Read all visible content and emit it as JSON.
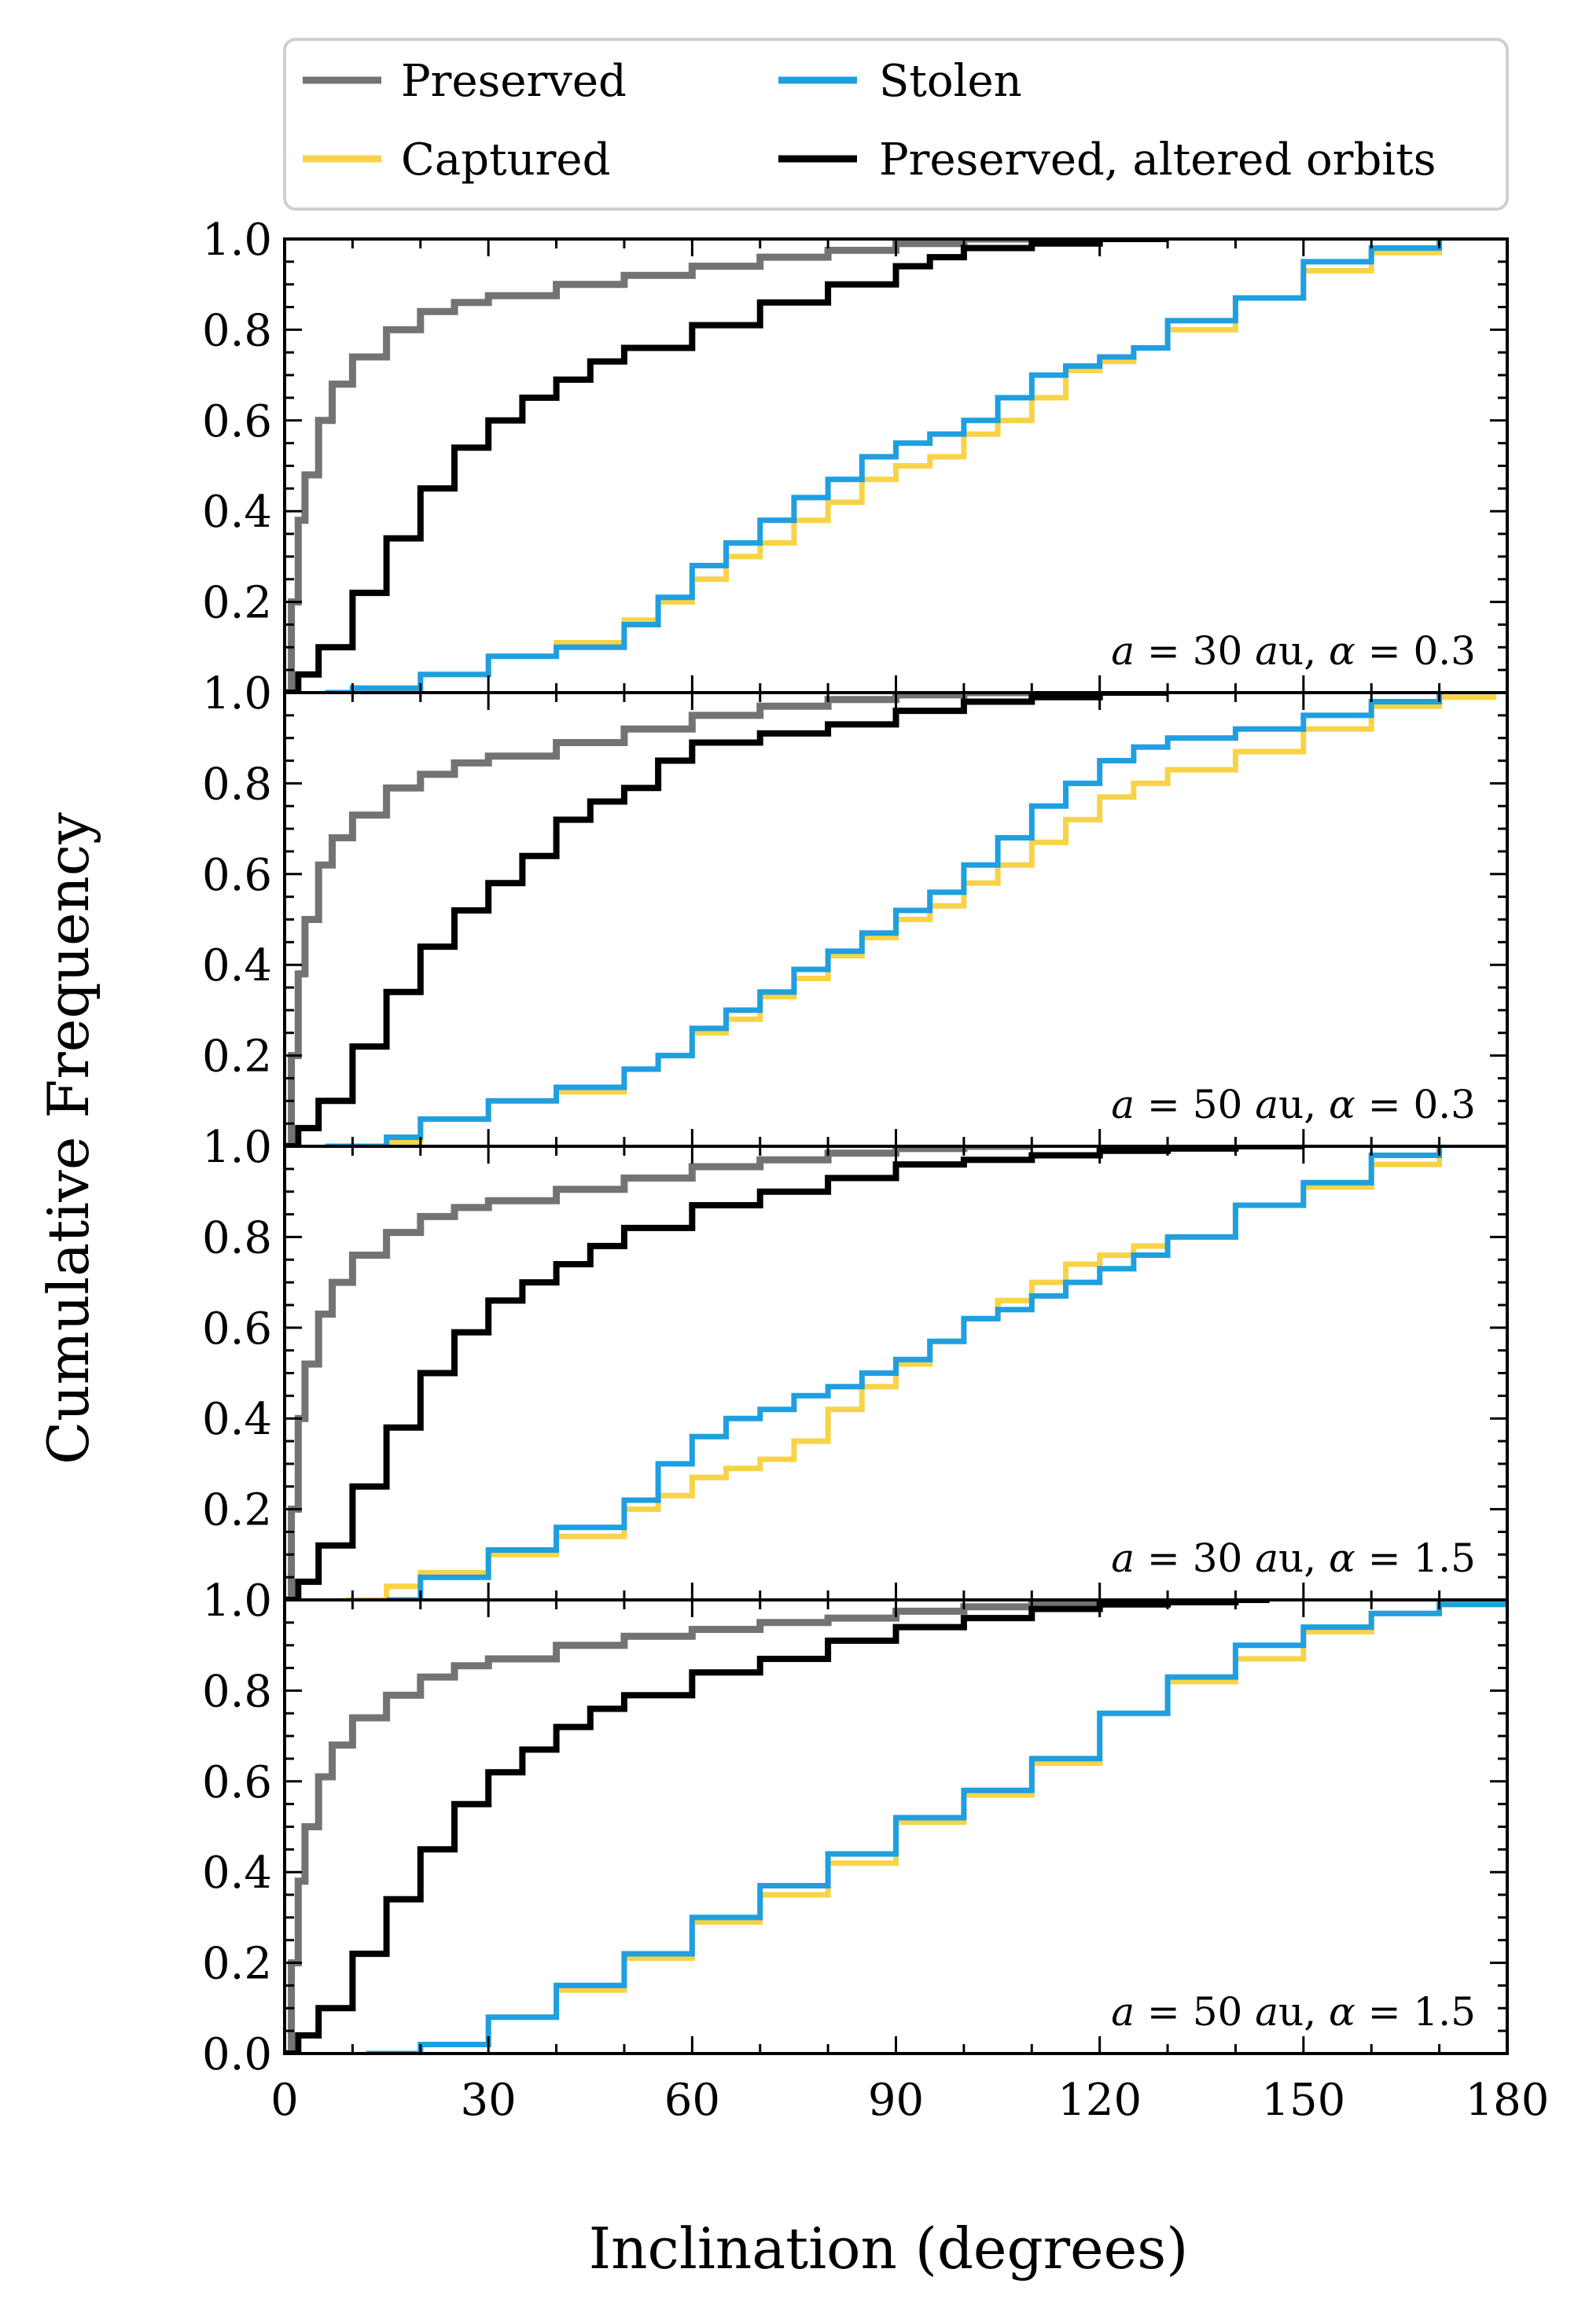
{
  "chart_data": {
    "type": "line",
    "title": "",
    "xlabel": "Inclination (degrees)",
    "ylabel": "Cumulative Frequency",
    "xlim": [
      0,
      180
    ],
    "ylim": [
      0,
      1
    ],
    "xticks": [
      0,
      30,
      60,
      90,
      120,
      150,
      180
    ],
    "xtick_labels": [
      "0",
      "30",
      "60",
      "90",
      "120",
      "150",
      "180"
    ],
    "yticks": [
      0,
      0.2,
      0.4,
      0.6,
      0.8,
      1.0
    ],
    "ytick_labels": [
      "0.0",
      "0.2",
      "0.4",
      "0.6",
      "0.8",
      "1.0"
    ],
    "grid": false,
    "legend_position": "top",
    "legend": [
      {
        "name": "Preserved",
        "color": "#737373"
      },
      {
        "name": "Captured",
        "color": "#f8d347"
      },
      {
        "name": "Stolen",
        "color": "#1f9fe0"
      },
      {
        "name": "Preserved, altered orbits",
        "color": "#000000"
      }
    ],
    "panels": [
      {
        "annotation": "a = 30 au, α = 0.3",
        "series": [
          {
            "name": "Preserved",
            "x": [
              0,
              1,
              2,
              3,
              5,
              7,
              10,
              15,
              20,
              25,
              30,
              40,
              50,
              60,
              70,
              80,
              90,
              100,
              110
            ],
            "y": [
              0,
              0.2,
              0.38,
              0.48,
              0.6,
              0.68,
              0.74,
              0.8,
              0.84,
              0.86,
              0.875,
              0.9,
              0.92,
              0.94,
              0.96,
              0.975,
              0.99,
              1.0,
              1.0
            ]
          },
          {
            "name": "Preserved, altered orbits",
            "x": [
              0,
              2,
              5,
              10,
              15,
              20,
              25,
              30,
              35,
              40,
              45,
              50,
              60,
              70,
              80,
              90,
              95,
              100,
              110,
              120,
              130
            ],
            "y": [
              0,
              0.04,
              0.1,
              0.22,
              0.34,
              0.45,
              0.54,
              0.6,
              0.65,
              0.69,
              0.73,
              0.76,
              0.81,
              0.86,
              0.9,
              0.94,
              0.96,
              0.98,
              0.99,
              1.0,
              1.0
            ]
          },
          {
            "name": "Captured",
            "x": [
              6,
              10,
              20,
              30,
              40,
              50,
              55,
              60,
              65,
              70,
              75,
              80,
              85,
              90,
              95,
              100,
              105,
              110,
              115,
              120,
              125,
              130,
              140,
              150,
              160,
              170
            ],
            "y": [
              0,
              0.01,
              0.04,
              0.08,
              0.11,
              0.16,
              0.2,
              0.25,
              0.3,
              0.33,
              0.38,
              0.42,
              0.47,
              0.5,
              0.52,
              0.57,
              0.6,
              0.65,
              0.71,
              0.73,
              0.76,
              0.8,
              0.87,
              0.93,
              0.97,
              1.0
            ]
          },
          {
            "name": "Stolen",
            "x": [
              6,
              10,
              20,
              30,
              40,
              50,
              55,
              60,
              65,
              70,
              75,
              80,
              85,
              90,
              95,
              100,
              105,
              110,
              115,
              120,
              125,
              130,
              140,
              150,
              160,
              170
            ],
            "y": [
              0,
              0.01,
              0.04,
              0.08,
              0.1,
              0.15,
              0.21,
              0.28,
              0.33,
              0.38,
              0.43,
              0.47,
              0.52,
              0.55,
              0.57,
              0.6,
              0.65,
              0.7,
              0.72,
              0.74,
              0.76,
              0.82,
              0.87,
              0.95,
              0.98,
              1.0
            ]
          }
        ]
      },
      {
        "annotation": "a = 50 au, α = 0.3",
        "series": [
          {
            "name": "Preserved",
            "x": [
              0,
              1,
              2,
              3,
              5,
              7,
              10,
              15,
              20,
              25,
              30,
              40,
              50,
              60,
              70,
              80,
              90,
              100,
              110
            ],
            "y": [
              0,
              0.2,
              0.38,
              0.5,
              0.62,
              0.68,
              0.73,
              0.79,
              0.82,
              0.845,
              0.86,
              0.89,
              0.92,
              0.95,
              0.97,
              0.985,
              0.995,
              1.0,
              1.0
            ]
          },
          {
            "name": "Preserved, altered orbits",
            "x": [
              0,
              2,
              5,
              10,
              15,
              20,
              25,
              30,
              35,
              40,
              45,
              50,
              55,
              60,
              70,
              80,
              90,
              100,
              110,
              120,
              130
            ],
            "y": [
              0,
              0.04,
              0.1,
              0.22,
              0.34,
              0.44,
              0.52,
              0.58,
              0.64,
              0.72,
              0.76,
              0.79,
              0.85,
              0.89,
              0.91,
              0.93,
              0.96,
              0.98,
              0.99,
              1.0,
              1.0
            ]
          },
          {
            "name": "Captured",
            "x": [
              6,
              15,
              20,
              30,
              40,
              50,
              55,
              60,
              65,
              70,
              75,
              80,
              85,
              90,
              95,
              100,
              105,
              110,
              115,
              120,
              125,
              130,
              140,
              150,
              160,
              170,
              178
            ],
            "y": [
              0,
              0.01,
              0.06,
              0.1,
              0.12,
              0.17,
              0.2,
              0.25,
              0.28,
              0.33,
              0.37,
              0.42,
              0.46,
              0.5,
              0.53,
              0.58,
              0.62,
              0.67,
              0.72,
              0.77,
              0.8,
              0.83,
              0.87,
              0.92,
              0.97,
              0.99,
              1.0
            ]
          },
          {
            "name": "Stolen",
            "x": [
              6,
              15,
              20,
              30,
              40,
              50,
              55,
              60,
              65,
              70,
              75,
              80,
              85,
              90,
              95,
              100,
              105,
              110,
              115,
              120,
              125,
              130,
              140,
              150,
              160,
              170
            ],
            "y": [
              0,
              0.02,
              0.06,
              0.1,
              0.13,
              0.17,
              0.2,
              0.26,
              0.3,
              0.34,
              0.39,
              0.43,
              0.47,
              0.52,
              0.56,
              0.62,
              0.68,
              0.75,
              0.8,
              0.85,
              0.88,
              0.9,
              0.92,
              0.95,
              0.98,
              1.0
            ]
          }
        ]
      },
      {
        "annotation": "a = 30 au, α = 1.5",
        "series": [
          {
            "name": "Preserved",
            "x": [
              0,
              1,
              2,
              3,
              5,
              7,
              10,
              15,
              20,
              25,
              30,
              40,
              50,
              60,
              70,
              80,
              90,
              100,
              110
            ],
            "y": [
              0,
              0.2,
              0.4,
              0.52,
              0.63,
              0.7,
              0.76,
              0.81,
              0.845,
              0.865,
              0.88,
              0.905,
              0.93,
              0.955,
              0.97,
              0.985,
              0.995,
              1.0,
              1.0
            ]
          },
          {
            "name": "Preserved, altered orbits",
            "x": [
              0,
              2,
              5,
              10,
              15,
              20,
              25,
              30,
              35,
              40,
              45,
              50,
              60,
              70,
              80,
              90,
              100,
              110,
              120,
              130,
              140,
              150
            ],
            "y": [
              0,
              0.04,
              0.12,
              0.25,
              0.38,
              0.5,
              0.59,
              0.66,
              0.7,
              0.74,
              0.78,
              0.82,
              0.87,
              0.9,
              0.93,
              0.96,
              0.97,
              0.98,
              0.99,
              0.995,
              1.0,
              1.0
            ]
          },
          {
            "name": "Captured",
            "x": [
              9,
              15,
              20,
              30,
              40,
              50,
              55,
              60,
              65,
              70,
              75,
              80,
              85,
              90,
              95,
              100,
              105,
              110,
              115,
              120,
              125,
              130,
              140,
              150,
              160,
              170
            ],
            "y": [
              0,
              0.03,
              0.06,
              0.1,
              0.14,
              0.2,
              0.23,
              0.27,
              0.29,
              0.31,
              0.35,
              0.42,
              0.47,
              0.52,
              0.57,
              0.62,
              0.66,
              0.7,
              0.74,
              0.76,
              0.78,
              0.8,
              0.87,
              0.91,
              0.96,
              1.0
            ]
          },
          {
            "name": "Stolen",
            "x": [
              15,
              20,
              30,
              40,
              50,
              55,
              60,
              65,
              70,
              75,
              80,
              85,
              90,
              95,
              100,
              105,
              110,
              115,
              120,
              125,
              130,
              140,
              150,
              160,
              170
            ],
            "y": [
              0,
              0.05,
              0.11,
              0.16,
              0.22,
              0.3,
              0.36,
              0.4,
              0.42,
              0.45,
              0.47,
              0.5,
              0.53,
              0.57,
              0.62,
              0.64,
              0.67,
              0.7,
              0.73,
              0.76,
              0.8,
              0.87,
              0.92,
              0.98,
              1.0
            ]
          }
        ]
      },
      {
        "annotation": "a = 50 au, α = 1.5",
        "series": [
          {
            "name": "Preserved",
            "x": [
              0,
              1,
              2,
              3,
              5,
              7,
              10,
              15,
              20,
              25,
              30,
              40,
              50,
              60,
              70,
              80,
              90,
              100,
              110,
              120
            ],
            "y": [
              0,
              0.2,
              0.38,
              0.5,
              0.61,
              0.68,
              0.74,
              0.79,
              0.83,
              0.855,
              0.87,
              0.9,
              0.92,
              0.935,
              0.95,
              0.96,
              0.975,
              0.985,
              0.995,
              1.0
            ]
          },
          {
            "name": "Preserved, altered orbits",
            "x": [
              0,
              2,
              5,
              10,
              15,
              20,
              25,
              30,
              35,
              40,
              45,
              50,
              60,
              70,
              80,
              90,
              100,
              110,
              120,
              130,
              140,
              145
            ],
            "y": [
              0,
              0.04,
              0.1,
              0.22,
              0.34,
              0.45,
              0.55,
              0.62,
              0.67,
              0.72,
              0.76,
              0.79,
              0.84,
              0.87,
              0.91,
              0.94,
              0.96,
              0.98,
              0.99,
              0.995,
              1.0,
              1.0
            ]
          },
          {
            "name": "Captured",
            "x": [
              12,
              20,
              30,
              40,
              50,
              60,
              70,
              80,
              90,
              100,
              110,
              120,
              130,
              140,
              150,
              160,
              170,
              180
            ],
            "y": [
              0,
              0.02,
              0.08,
              0.14,
              0.21,
              0.29,
              0.35,
              0.42,
              0.51,
              0.57,
              0.64,
              0.75,
              0.82,
              0.87,
              0.93,
              0.97,
              0.99,
              1.0
            ]
          },
          {
            "name": "Stolen",
            "x": [
              12,
              20,
              30,
              40,
              50,
              60,
              70,
              80,
              90,
              100,
              110,
              120,
              130,
              140,
              150,
              160,
              170,
              180
            ],
            "y": [
              0,
              0.02,
              0.08,
              0.15,
              0.22,
              0.3,
              0.37,
              0.44,
              0.52,
              0.58,
              0.65,
              0.75,
              0.83,
              0.9,
              0.94,
              0.97,
              0.99,
              1.0
            ]
          }
        ]
      }
    ]
  }
}
